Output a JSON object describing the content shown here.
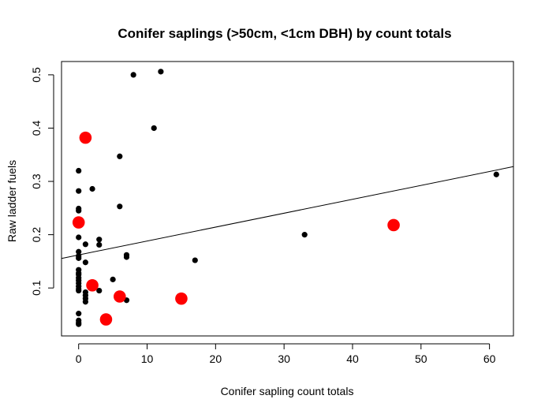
{
  "chart_data": {
    "type": "scatter",
    "title": "Conifer saplings (>50cm, <1cm DBH) by count totals",
    "xlabel": "Conifer sapling count totals",
    "ylabel": "Raw ladder fuels",
    "xlim": [
      -2.5,
      63.5
    ],
    "ylim": [
      0.01,
      0.525
    ],
    "xticks": [
      0,
      10,
      20,
      30,
      40,
      50,
      60
    ],
    "yticks": [
      0.1,
      0.2,
      0.3,
      0.4,
      0.5
    ],
    "grid": false,
    "legend": "none",
    "colors": {
      "points": "#000000",
      "highlight": "#ff0000",
      "line": "#000000"
    },
    "series": [
      {
        "color": "#000000",
        "x": [
          0,
          0,
          0,
          0,
          0,
          0,
          0,
          0,
          0,
          0,
          0,
          0,
          0,
          0,
          0,
          0,
          0,
          0,
          0,
          0,
          0,
          0,
          1,
          1,
          1,
          1,
          1,
          1,
          2,
          3,
          3,
          3,
          5,
          6,
          6,
          7,
          7,
          7,
          8,
          11,
          12,
          17,
          33,
          61
        ],
        "y": [
          0.32,
          0.282,
          0.249,
          0.245,
          0.195,
          0.168,
          0.16,
          0.156,
          0.134,
          0.128,
          0.119,
          0.114,
          0.109,
          0.103,
          0.098,
          0.095,
          0.052,
          0.039,
          0.035,
          0.032,
          0.224,
          0.125,
          0.182,
          0.148,
          0.092,
          0.086,
          0.08,
          0.074,
          0.286,
          0.191,
          0.181,
          0.095,
          0.116,
          0.347,
          0.253,
          0.162,
          0.158,
          0.077,
          0.5,
          0.4,
          0.506,
          0.152,
          0.2,
          0.313
        ]
      },
      {
        "color": "#ff0000",
        "x": [
          1,
          0,
          2,
          6,
          4,
          15,
          46
        ],
        "y": [
          0.382,
          0.223,
          0.105,
          0.084,
          0.041,
          0.08,
          0.218
        ]
      }
    ],
    "fit_line": {
      "intercept": 0.162,
      "slope": 0.00261
    }
  }
}
